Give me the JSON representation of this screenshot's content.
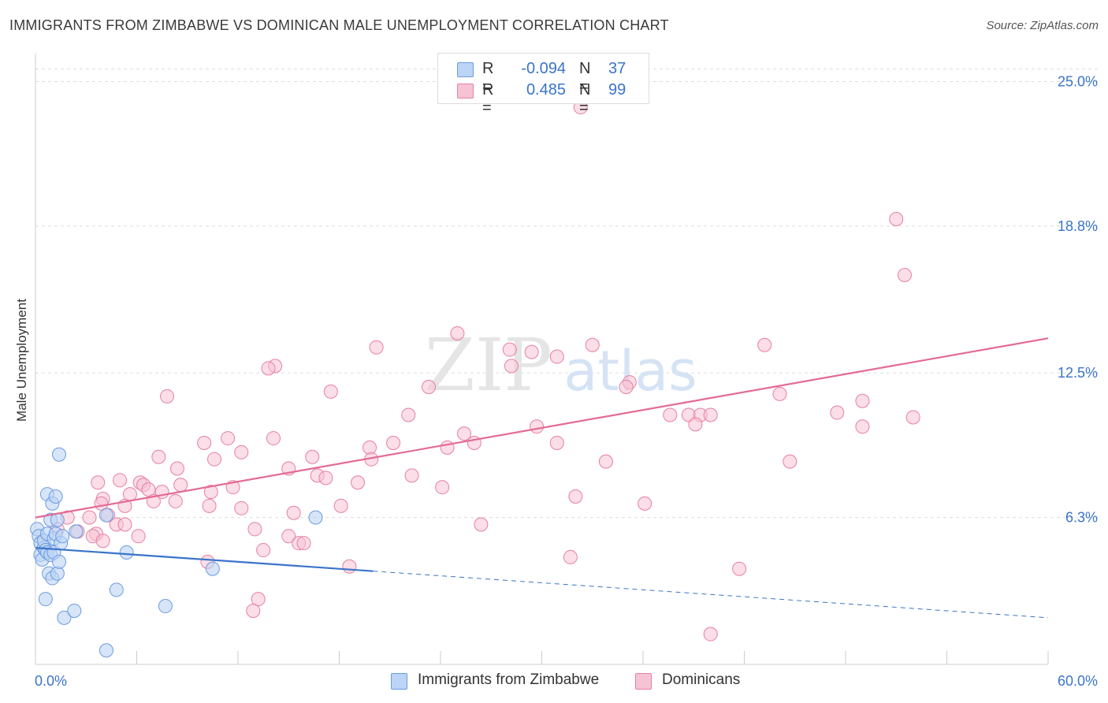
{
  "title": "IMMIGRANTS FROM ZIMBABWE VS DOMINICAN MALE UNEMPLOYMENT CORRELATION CHART",
  "source": "Source: ZipAtlas.com",
  "watermark": {
    "zip": "ZIP",
    "atlas": "atlas"
  },
  "colors": {
    "blue_fill": "#bcd4f5",
    "blue_stroke": "#6b9be0",
    "blue_line": "#3a74c9",
    "pink_fill": "#f7c3d4",
    "pink_stroke": "#e77fa2",
    "pink_line": "#e36b94",
    "axis_text_blue": "#3a74c9",
    "grid": "#dddddd"
  },
  "legend": {
    "rows": [
      {
        "r_label": "R =",
        "r_value": "-0.094",
        "n_label": "N =",
        "n_value": "37"
      },
      {
        "r_label": "R =",
        "r_value": "0.485",
        "n_label": "N =",
        "n_value": "99"
      }
    ]
  },
  "bottom_legend": {
    "blue_label": "Immigrants from Zimbabwe",
    "pink_label": "Dominicans"
  },
  "chart_data": {
    "type": "scatter",
    "title": "IMMIGRANTS FROM ZIMBABWE VS DOMINICAN MALE UNEMPLOYMENT CORRELATION CHART",
    "xlabel": "",
    "ylabel": "Male Unemployment",
    "xlim": [
      0,
      60
    ],
    "ylim": [
      0,
      26.2
    ],
    "x_tick_labels": [
      "0.0%",
      "60.0%"
    ],
    "y_ticks": [
      6.3,
      12.5,
      18.8,
      25.0
    ],
    "y_tick_labels": [
      "6.3%",
      "12.5%",
      "18.8%",
      "25.0%"
    ],
    "grid": true,
    "legend_position": "top-center",
    "series": [
      {
        "name": "Immigrants from Zimbabwe",
        "color": "#6b9be0",
        "trend": {
          "x0": 0,
          "y0": 5.0,
          "x1": 20,
          "y1": 4.0,
          "dash_to_x": 60,
          "dash_to_y": 2.0
        },
        "points": [
          [
            0.1,
            5.8
          ],
          [
            0.2,
            5.5
          ],
          [
            0.3,
            5.2
          ],
          [
            0.3,
            4.7
          ],
          [
            0.4,
            4.5
          ],
          [
            0.5,
            5.0
          ],
          [
            0.5,
            5.3
          ],
          [
            0.6,
            4.9
          ],
          [
            0.7,
            5.6
          ],
          [
            0.7,
            4.8
          ],
          [
            0.8,
            3.9
          ],
          [
            0.9,
            4.7
          ],
          [
            1.0,
            3.7
          ],
          [
            0.6,
            2.8
          ],
          [
            0.7,
            7.3
          ],
          [
            0.9,
            6.2
          ],
          [
            1.0,
            6.9
          ],
          [
            1.1,
            5.4
          ],
          [
            1.2,
            5.6
          ],
          [
            1.1,
            4.8
          ],
          [
            1.3,
            3.9
          ],
          [
            1.3,
            6.2
          ],
          [
            1.4,
            9.0
          ],
          [
            1.5,
            5.2
          ],
          [
            1.4,
            4.4
          ],
          [
            1.6,
            5.5
          ],
          [
            1.7,
            2.0
          ],
          [
            2.3,
            2.3
          ],
          [
            2.4,
            5.7
          ],
          [
            4.2,
            0.6
          ],
          [
            4.8,
            3.2
          ],
          [
            5.4,
            4.8
          ],
          [
            4.2,
            6.4
          ],
          [
            7.7,
            2.5
          ],
          [
            10.5,
            4.1
          ],
          [
            16.6,
            6.3
          ],
          [
            1.2,
            7.2
          ]
        ]
      },
      {
        "name": "Dominicans",
        "color": "#e77fa2",
        "points": [
          [
            28.0,
            24.9
          ],
          [
            32.3,
            23.9
          ],
          [
            51.0,
            19.1
          ],
          [
            51.5,
            16.7
          ],
          [
            25.0,
            14.2
          ],
          [
            28.1,
            13.5
          ],
          [
            20.2,
            13.6
          ],
          [
            29.4,
            13.4
          ],
          [
            30.9,
            13.2
          ],
          [
            33.0,
            13.7
          ],
          [
            43.2,
            13.7
          ],
          [
            14.2,
            12.8
          ],
          [
            13.8,
            12.7
          ],
          [
            28.2,
            12.8
          ],
          [
            35.2,
            12.1
          ],
          [
            35.0,
            11.9
          ],
          [
            23.3,
            11.9
          ],
          [
            17.5,
            11.7
          ],
          [
            44.1,
            11.6
          ],
          [
            7.8,
            11.5
          ],
          [
            49.0,
            11.3
          ],
          [
            22.1,
            10.7
          ],
          [
            37.6,
            10.7
          ],
          [
            38.7,
            10.7
          ],
          [
            39.4,
            10.7
          ],
          [
            40.0,
            10.7
          ],
          [
            47.5,
            10.8
          ],
          [
            52.0,
            10.6
          ],
          [
            39.1,
            10.3
          ],
          [
            29.7,
            10.2
          ],
          [
            49.0,
            10.2
          ],
          [
            25.4,
            9.9
          ],
          [
            11.4,
            9.7
          ],
          [
            14.1,
            9.7
          ],
          [
            10.0,
            9.5
          ],
          [
            21.2,
            9.5
          ],
          [
            26.0,
            9.5
          ],
          [
            19.8,
            9.3
          ],
          [
            30.9,
            9.5
          ],
          [
            24.4,
            9.3
          ],
          [
            12.2,
            9.1
          ],
          [
            7.3,
            8.9
          ],
          [
            16.4,
            8.9
          ],
          [
            19.9,
            8.8
          ],
          [
            10.6,
            8.8
          ],
          [
            33.8,
            8.7
          ],
          [
            44.7,
            8.7
          ],
          [
            8.4,
            8.4
          ],
          [
            15.0,
            8.4
          ],
          [
            16.7,
            8.1
          ],
          [
            22.3,
            8.1
          ],
          [
            17.2,
            8.0
          ],
          [
            5.0,
            7.9
          ],
          [
            6.2,
            7.8
          ],
          [
            19.1,
            7.8
          ],
          [
            3.7,
            7.8
          ],
          [
            8.6,
            7.7
          ],
          [
            6.4,
            7.7
          ],
          [
            24.1,
            7.6
          ],
          [
            11.7,
            7.6
          ],
          [
            6.7,
            7.5
          ],
          [
            7.5,
            7.4
          ],
          [
            10.4,
            7.4
          ],
          [
            5.6,
            7.3
          ],
          [
            32.0,
            7.2
          ],
          [
            4.0,
            7.1
          ],
          [
            7.0,
            7.0
          ],
          [
            8.3,
            7.0
          ],
          [
            36.1,
            6.9
          ],
          [
            18.1,
            6.8
          ],
          [
            3.9,
            6.9
          ],
          [
            10.3,
            6.8
          ],
          [
            5.3,
            6.8
          ],
          [
            12.2,
            6.7
          ],
          [
            15.3,
            6.5
          ],
          [
            4.3,
            6.4
          ],
          [
            3.2,
            6.3
          ],
          [
            1.9,
            6.3
          ],
          [
            4.8,
            6.0
          ],
          [
            26.4,
            6.0
          ],
          [
            5.3,
            6.0
          ],
          [
            1.3,
            5.8
          ],
          [
            2.5,
            5.7
          ],
          [
            3.6,
            5.6
          ],
          [
            3.4,
            5.5
          ],
          [
            6.1,
            5.5
          ],
          [
            13.0,
            5.8
          ],
          [
            15.0,
            5.5
          ],
          [
            15.6,
            5.2
          ],
          [
            15.9,
            5.2
          ],
          [
            4.0,
            5.3
          ],
          [
            13.5,
            4.9
          ],
          [
            31.7,
            4.6
          ],
          [
            10.2,
            4.4
          ],
          [
            18.6,
            4.2
          ],
          [
            41.7,
            4.1
          ],
          [
            13.2,
            2.8
          ],
          [
            12.9,
            2.3
          ],
          [
            40.0,
            1.3
          ]
        ]
      }
    ]
  }
}
